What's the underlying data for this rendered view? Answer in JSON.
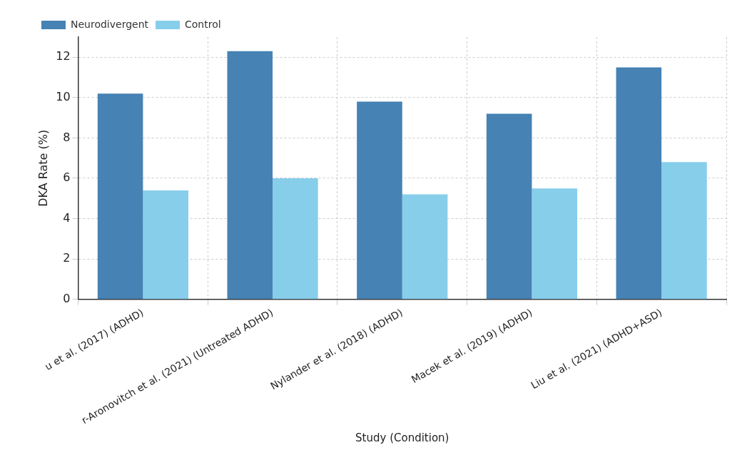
{
  "chart_data": {
    "type": "bar",
    "xlabel": "Study (Condition)",
    "ylabel": "DKA Rate (%)",
    "categories": [
      "u et al. (2017) (ADHD)",
      "r-Aronovitch et al. (2021) (Untreated ADHD)",
      "Nylander et al. (2018) (ADHD)",
      "Macek et al. (2019) (ADHD)",
      "Liu et al. (2021) (ADHD+ASD)"
    ],
    "series": [
      {
        "name": "Neurodivergent",
        "color": "#4682b4",
        "values": [
          10.2,
          12.3,
          9.8,
          9.2,
          11.5
        ]
      },
      {
        "name": "Control",
        "color": "#87ceeb",
        "values": [
          5.4,
          6.0,
          5.2,
          5.5,
          6.8
        ]
      }
    ],
    "ylim": [
      0,
      13
    ],
    "yticks": [
      0,
      2,
      4,
      6,
      8,
      10,
      12
    ],
    "grid": true,
    "legend": "top left"
  }
}
